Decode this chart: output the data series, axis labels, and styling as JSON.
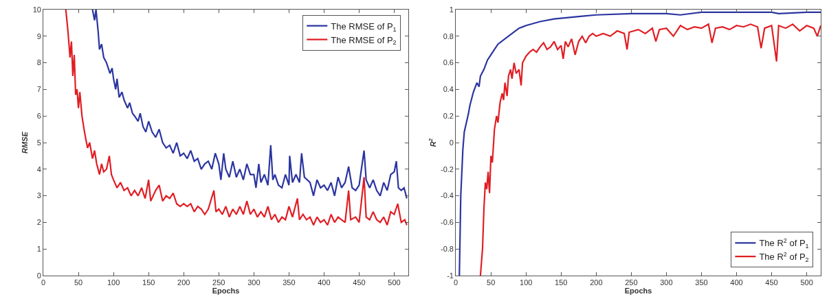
{
  "chart_data": [
    {
      "type": "line",
      "xlabel": "Epochs",
      "ylabel": "RMSE",
      "xlim": [
        0,
        520
      ],
      "ylim": [
        0,
        10
      ],
      "xticks": [
        0,
        50,
        100,
        150,
        200,
        250,
        300,
        350,
        400,
        450,
        500
      ],
      "yticks": [
        0,
        1,
        2,
        3,
        4,
        5,
        6,
        7,
        8,
        9,
        10
      ],
      "legend": "top right",
      "line_style": "solid",
      "series": [
        {
          "name": "The RMSE of P$_{1}$",
          "color": "#2b35a0",
          "x": [
            70,
            73,
            75,
            78,
            80,
            83,
            86,
            90,
            95,
            98,
            100,
            103,
            105,
            108,
            112,
            115,
            120,
            123,
            127,
            130,
            135,
            138,
            142,
            146,
            150,
            155,
            160,
            165,
            170,
            175,
            180,
            185,
            190,
            195,
            200,
            205,
            210,
            215,
            220,
            225,
            230,
            235,
            240,
            245,
            250,
            253,
            257,
            260,
            265,
            270,
            275,
            280,
            285,
            290,
            295,
            300,
            303,
            307,
            310,
            315,
            320,
            324,
            327,
            330,
            335,
            340,
            345,
            350,
            351,
            355,
            360,
            365,
            368,
            372,
            380,
            385,
            390,
            395,
            400,
            405,
            410,
            415,
            420,
            425,
            430,
            435,
            440,
            445,
            450,
            457,
            460,
            465,
            470,
            475,
            480,
            485,
            490,
            495,
            500,
            503,
            506,
            510,
            514,
            518
          ],
          "values": [
            10,
            9.6,
            10,
            9.2,
            8.5,
            8.7,
            8.2,
            8.0,
            7.6,
            7.8,
            7.4,
            7.0,
            7.4,
            6.7,
            6.9,
            6.6,
            6.3,
            6.5,
            6.1,
            6.0,
            5.8,
            6.1,
            5.6,
            5.4,
            5.8,
            5.4,
            5.2,
            5.5,
            5.0,
            4.8,
            4.9,
            4.6,
            5.0,
            4.5,
            4.6,
            4.4,
            4.7,
            4.3,
            4.4,
            4.0,
            4.2,
            4.3,
            4.0,
            4.6,
            4.2,
            3.6,
            4.6,
            4.0,
            3.7,
            4.3,
            3.7,
            4.0,
            3.6,
            4.2,
            3.8,
            3.8,
            3.3,
            4.2,
            3.5,
            3.8,
            3.4,
            4.9,
            3.6,
            3.8,
            3.4,
            3.3,
            3.8,
            3.4,
            4.5,
            3.5,
            3.8,
            3.5,
            4.6,
            3.7,
            3.5,
            3.0,
            3.6,
            3.3,
            3.4,
            3.2,
            3.5,
            3.0,
            3.7,
            3.3,
            3.5,
            4.1,
            3.3,
            3.2,
            3.4,
            4.7,
            3.6,
            3.3,
            3.6,
            3.2,
            3.0,
            3.5,
            3.2,
            3.8,
            3.9,
            4.3,
            3.3,
            3.2,
            3.3,
            2.9
          ]
        },
        {
          "name": "The RMSE of P$_{2}$",
          "color": "#e01e24",
          "x": [
            32,
            35,
            38,
            40,
            42,
            44,
            46,
            48,
            50,
            52,
            55,
            58,
            60,
            63,
            66,
            70,
            73,
            76,
            80,
            83,
            86,
            90,
            94,
            97,
            100,
            105,
            110,
            115,
            120,
            125,
            130,
            135,
            140,
            145,
            150,
            153,
            160,
            165,
            170,
            175,
            180,
            185,
            190,
            195,
            200,
            205,
            210,
            215,
            220,
            225,
            230,
            235,
            243,
            246,
            250,
            255,
            260,
            265,
            270,
            275,
            280,
            285,
            290,
            295,
            300,
            305,
            310,
            315,
            320,
            325,
            330,
            335,
            340,
            345,
            350,
            355,
            362,
            365,
            370,
            375,
            380,
            385,
            390,
            395,
            400,
            405,
            410,
            415,
            420,
            425,
            430,
            435,
            438,
            445,
            450,
            457,
            460,
            465,
            470,
            475,
            480,
            485,
            490,
            495,
            500,
            505,
            510,
            515,
            518
          ],
          "values": [
            10,
            9.2,
            8.2,
            8.8,
            7.5,
            8.3,
            6.8,
            7.0,
            6.3,
            6.9,
            6.0,
            5.5,
            5.2,
            4.8,
            5.0,
            4.4,
            4.7,
            4.2,
            3.8,
            4.2,
            3.9,
            4.0,
            4.5,
            3.8,
            3.6,
            3.3,
            3.5,
            3.2,
            3.3,
            3.0,
            3.2,
            3.0,
            3.3,
            2.9,
            3.6,
            2.8,
            3.2,
            3.4,
            2.8,
            3.0,
            2.9,
            3.1,
            2.7,
            2.6,
            2.7,
            2.6,
            2.7,
            2.4,
            2.6,
            2.5,
            2.3,
            2.5,
            3.2,
            2.4,
            2.5,
            2.3,
            2.6,
            2.2,
            2.5,
            2.3,
            2.6,
            2.3,
            2.8,
            2.3,
            2.5,
            2.2,
            2.4,
            2.2,
            2.6,
            2.1,
            2.3,
            2.0,
            2.2,
            2.1,
            2.6,
            2.2,
            2.9,
            2.1,
            2.3,
            2.1,
            2.2,
            1.9,
            2.2,
            2.0,
            2.1,
            1.9,
            2.3,
            2.0,
            2.2,
            2.1,
            2.0,
            3.2,
            2.1,
            2.2,
            2.0,
            3.7,
            2.2,
            2.1,
            2.4,
            2.1,
            2.0,
            2.2,
            1.9,
            2.4,
            2.3,
            2.7,
            2.0,
            2.1,
            1.9
          ]
        }
      ]
    },
    {
      "type": "line",
      "xlabel": "Epochs",
      "ylabel": "R$^{2}$",
      "xlim": [
        0,
        520
      ],
      "ylim": [
        -1,
        1
      ],
      "xticks": [
        0,
        50,
        100,
        150,
        200,
        250,
        300,
        350,
        400,
        450,
        500
      ],
      "yticks": [
        -1,
        -0.8,
        -0.6,
        -0.4,
        -0.2,
        0,
        0.2,
        0.4,
        0.6,
        0.8,
        1
      ],
      "legend": "bottom right",
      "line_style": "solid",
      "series": [
        {
          "name": "The R$^{2}$ of P$_{1}$",
          "color": "#2b35a0",
          "x": [
            5,
            7,
            10,
            12,
            15,
            18,
            20,
            25,
            30,
            33,
            35,
            40,
            45,
            50,
            55,
            60,
            70,
            80,
            90,
            100,
            120,
            140,
            160,
            180,
            200,
            250,
            300,
            320,
            350,
            400,
            450,
            460,
            500,
            520
          ],
          "values": [
            -1,
            -0.4,
            -0.05,
            0.08,
            0.15,
            0.22,
            0.28,
            0.38,
            0.45,
            0.42,
            0.5,
            0.55,
            0.62,
            0.66,
            0.7,
            0.74,
            0.78,
            0.82,
            0.86,
            0.88,
            0.91,
            0.93,
            0.94,
            0.95,
            0.96,
            0.97,
            0.97,
            0.96,
            0.98,
            0.98,
            0.98,
            0.97,
            0.98,
            0.98
          ]
        },
        {
          "name": "The R$^{2}$ of P$_{2}$",
          "color": "#e01e24",
          "x": [
            35,
            38,
            40,
            42,
            44,
            46,
            48,
            50,
            52,
            55,
            58,
            60,
            63,
            66,
            68,
            70,
            73,
            75,
            78,
            80,
            83,
            86,
            90,
            93,
            95,
            100,
            105,
            110,
            115,
            120,
            125,
            130,
            135,
            140,
            145,
            150,
            153,
            156,
            160,
            165,
            170,
            175,
            180,
            185,
            190,
            195,
            200,
            210,
            220,
            230,
            240,
            244,
            247,
            260,
            270,
            280,
            285,
            290,
            300,
            310,
            320,
            330,
            340,
            350,
            360,
            365,
            370,
            380,
            390,
            400,
            410,
            420,
            430,
            435,
            440,
            450,
            457,
            460,
            470,
            480,
            490,
            500,
            510,
            515,
            520
          ],
          "values": [
            -1,
            -0.8,
            -0.5,
            -0.3,
            -0.35,
            -0.22,
            -0.38,
            -0.1,
            -0.15,
            0.1,
            0.2,
            0.15,
            0.3,
            0.37,
            0.32,
            0.45,
            0.35,
            0.5,
            0.55,
            0.48,
            0.6,
            0.52,
            0.55,
            0.43,
            0.6,
            0.65,
            0.68,
            0.7,
            0.68,
            0.72,
            0.75,
            0.7,
            0.72,
            0.76,
            0.7,
            0.73,
            0.63,
            0.76,
            0.72,
            0.78,
            0.66,
            0.76,
            0.8,
            0.75,
            0.8,
            0.82,
            0.8,
            0.82,
            0.8,
            0.84,
            0.82,
            0.7,
            0.83,
            0.85,
            0.82,
            0.86,
            0.76,
            0.85,
            0.86,
            0.8,
            0.88,
            0.85,
            0.87,
            0.86,
            0.89,
            0.75,
            0.86,
            0.87,
            0.85,
            0.88,
            0.87,
            0.89,
            0.87,
            0.71,
            0.86,
            0.88,
            0.61,
            0.88,
            0.86,
            0.89,
            0.84,
            0.88,
            0.86,
            0.8,
            0.88
          ]
        }
      ]
    }
  ]
}
